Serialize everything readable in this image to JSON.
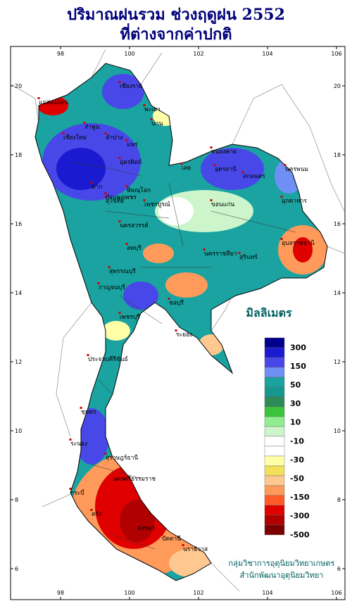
{
  "title": [
    "ปริมาณฝนรวม ช่วงฤดูฝน 2552",
    "ที่ต่างจากค่าปกติ"
  ],
  "lon_ticks": [
    98,
    100,
    102,
    104,
    106
  ],
  "lat_ticks": [
    20,
    18,
    16,
    14,
    12,
    10,
    8,
    6
  ],
  "legend": {
    "title": "มิลลิเมตร",
    "labels": [
      300,
      150,
      50,
      30,
      10,
      -10,
      -30,
      -50,
      -150,
      -300,
      -500
    ],
    "colors": [
      "#00008b",
      "#1a1ad0",
      "#4848e8",
      "#6f8ff5",
      "#1aa3a0",
      "#16988f",
      "#2e8b57",
      "#3cc43c",
      "#90ee90",
      "#ccf5cc",
      "#ffffff",
      "#ffffff",
      "#ffffa8",
      "#f2e05a",
      "#ffc890",
      "#ff9a5a",
      "#ff5a28",
      "#e00000",
      "#b00000",
      "#7a0000"
    ]
  },
  "places": [
    "แม่ฮ่องสอน",
    "เชียงราย",
    "พะเยา",
    "น่าน",
    "เชียงใหม่",
    "ลำพูน",
    "ลำปาง",
    "แพร่",
    "อุตรดิตถ์",
    "ตาก",
    "สุโขทัย",
    "พิษณุโลก",
    "เพชรบูรณ์",
    "กำแพงเพชร",
    "นครสวรรค์",
    "หนองคาย",
    "อุดรธานี",
    "นครพนม",
    "สกลนคร",
    "มุกดาหาร",
    "เลย",
    "ขอนแก่น",
    "อุบลราชธานี",
    "นครราชสีมา",
    "สุรินทร์",
    "ลพบุรี",
    "สุพรรณบุรี",
    "กาญจนบุรี",
    "ชลบุรี",
    "เพชรบุรี",
    "ระยอง",
    "ประจวบคีรีขันธ์",
    "ชุมพร",
    "ระนอง",
    "สุราษฎร์ธานี",
    "กระบี่",
    "นครศรีธรรมราช",
    "ตรัง",
    "สงขลา",
    "ปัตตานี",
    "นราธิวาส"
  ],
  "credits": [
    "กลุ่มวิชาการอุตุนิยมวิทยาเกษตร",
    "สำนักพัฒนาอุตุนิยมวิทยา"
  ]
}
